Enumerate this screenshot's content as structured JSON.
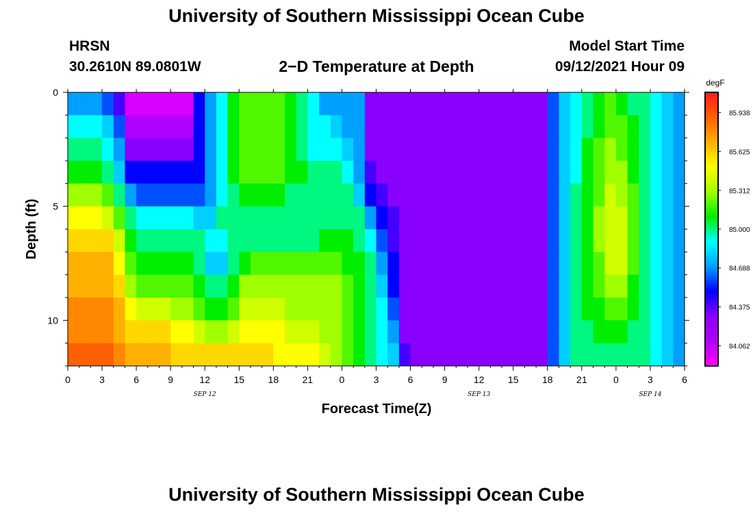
{
  "header": {
    "title_top": "University of Southern Mississippi Ocean Cube",
    "title_bottom": "University of Southern Mississippi Ocean Cube",
    "station": "HRSN",
    "coords": "30.2610N  89.0801W",
    "plot_title": "2−D Temperature at Depth",
    "model_label": "Model Start Time",
    "model_time": "09/12/2021 Hour 09"
  },
  "colors": {
    "colormap": [
      "#ff00ff",
      "#b000ff",
      "#8a00ff",
      "#0000ff",
      "#00a0ff",
      "#00ffff",
      "#00ee00",
      "#a0ff00",
      "#ffff00",
      "#ffb000",
      "#ff6000",
      "#ff1a1a"
    ]
  },
  "chart_data": {
    "type": "heatmap",
    "title": "2−D Temperature at Depth",
    "xlabel": "Forecast Time(Z)",
    "ylabel": "Depth (ft)",
    "x_tick_labels": [
      "0",
      "3",
      "6",
      "9",
      "12",
      "15",
      "18",
      "21",
      "0",
      "3",
      "6",
      "9",
      "12",
      "15",
      "18",
      "21",
      "0",
      "3",
      "6"
    ],
    "date_labels": [
      {
        "label": "SEP 12",
        "hour": 12
      },
      {
        "label": "SEP 13",
        "hour": 36
      },
      {
        "label": "SEP 14",
        "hour": 51
      }
    ],
    "y_tick_labels": [
      "0",
      "5",
      "10"
    ],
    "y_ticks": [
      0,
      5,
      10
    ],
    "xlim": [
      0,
      54
    ],
    "ylim": [
      0,
      12
    ],
    "hours": [
      0,
      1,
      2,
      3,
      4,
      5,
      6,
      7,
      8,
      9,
      10,
      11,
      12,
      13,
      14,
      15,
      16,
      17,
      18,
      19,
      20,
      21,
      22,
      23,
      24,
      25,
      26,
      27,
      28,
      29,
      30,
      31,
      32,
      33,
      34,
      35,
      36,
      37,
      38,
      39,
      40,
      41,
      42,
      43,
      44,
      45,
      46,
      47,
      48,
      49,
      50,
      51,
      52,
      53,
      54
    ],
    "depths": [
      0,
      1,
      2,
      3,
      4,
      5,
      6,
      7,
      8,
      9,
      10,
      11
    ],
    "colorbar": {
      "unit": "degF",
      "range": [
        83.9,
        86.1
      ],
      "tick_labels": [
        "85.938",
        "85.625",
        "85.312",
        "85.000",
        "84.688",
        "84.375",
        "84.062"
      ],
      "tick_values": [
        85.938,
        85.625,
        85.312,
        85.0,
        84.688,
        84.375,
        84.062
      ]
    },
    "values": [
      [
        84.7,
        84.7,
        84.7,
        84.6,
        84.4,
        84.0,
        84.0,
        84.0,
        84.0,
        84.0,
        84.0,
        84.5,
        84.7,
        84.9,
        85.1,
        85.2,
        85.2,
        85.2,
        85.2,
        85.1,
        85.0,
        84.9,
        84.7,
        84.7,
        84.7,
        84.7,
        84.3,
        84.3,
        84.3,
        84.3,
        84.3,
        84.3,
        84.3,
        84.3,
        84.3,
        84.3,
        84.3,
        84.3,
        84.3,
        84.3,
        84.3,
        84.3,
        84.6,
        84.8,
        84.9,
        85.0,
        85.1,
        85.2,
        85.1,
        85.0,
        85.0,
        84.9,
        84.8,
        84.7,
        84.7
      ],
      [
        84.9,
        84.9,
        84.9,
        84.8,
        84.6,
        84.1,
        84.1,
        84.1,
        84.1,
        84.1,
        84.1,
        84.5,
        84.7,
        84.9,
        85.1,
        85.2,
        85.2,
        85.2,
        85.2,
        85.1,
        85.0,
        84.9,
        84.9,
        84.8,
        84.7,
        84.7,
        84.3,
        84.3,
        84.3,
        84.3,
        84.3,
        84.3,
        84.3,
        84.3,
        84.3,
        84.3,
        84.3,
        84.3,
        84.3,
        84.3,
        84.3,
        84.3,
        84.6,
        84.8,
        84.9,
        85.0,
        85.1,
        85.2,
        85.2,
        85.1,
        85.0,
        84.9,
        84.8,
        84.7,
        84.7
      ],
      [
        85.0,
        85.0,
        85.0,
        84.9,
        84.7,
        84.3,
        84.3,
        84.3,
        84.3,
        84.3,
        84.3,
        84.5,
        84.7,
        84.9,
        85.1,
        85.2,
        85.2,
        85.2,
        85.2,
        85.1,
        85.0,
        84.9,
        84.9,
        84.9,
        84.8,
        84.7,
        84.3,
        84.3,
        84.3,
        84.3,
        84.3,
        84.3,
        84.3,
        84.3,
        84.3,
        84.3,
        84.3,
        84.3,
        84.3,
        84.3,
        84.3,
        84.3,
        84.6,
        84.8,
        84.9,
        85.1,
        85.2,
        85.3,
        85.2,
        85.1,
        85.0,
        84.9,
        84.8,
        84.7,
        84.7
      ],
      [
        85.1,
        85.1,
        85.1,
        85.0,
        84.8,
        84.5,
        84.5,
        84.5,
        84.5,
        84.5,
        84.5,
        84.5,
        84.7,
        84.9,
        85.1,
        85.2,
        85.2,
        85.2,
        85.2,
        85.1,
        85.1,
        85.0,
        85.0,
        85.0,
        84.9,
        84.7,
        84.4,
        84.3,
        84.3,
        84.3,
        84.3,
        84.3,
        84.3,
        84.3,
        84.3,
        84.3,
        84.3,
        84.3,
        84.3,
        84.3,
        84.3,
        84.3,
        84.6,
        84.8,
        84.9,
        85.1,
        85.2,
        85.3,
        85.3,
        85.1,
        85.0,
        84.9,
        84.8,
        84.7,
        84.7
      ],
      [
        85.3,
        85.3,
        85.3,
        85.2,
        85.0,
        84.7,
        84.6,
        84.6,
        84.6,
        84.6,
        84.6,
        84.6,
        84.7,
        84.9,
        85.0,
        85.1,
        85.1,
        85.1,
        85.1,
        85.0,
        85.0,
        85.0,
        85.0,
        85.0,
        85.0,
        84.8,
        84.5,
        84.4,
        84.3,
        84.3,
        84.3,
        84.3,
        84.3,
        84.3,
        84.3,
        84.3,
        84.3,
        84.3,
        84.3,
        84.3,
        84.3,
        84.3,
        84.6,
        84.8,
        85.0,
        85.1,
        85.2,
        85.4,
        85.3,
        85.2,
        85.0,
        84.9,
        84.8,
        84.7,
        84.7
      ],
      [
        85.5,
        85.5,
        85.5,
        85.4,
        85.2,
        85.0,
        84.9,
        84.9,
        84.9,
        84.9,
        84.9,
        84.8,
        84.8,
        85.0,
        85.0,
        85.0,
        85.0,
        85.0,
        85.0,
        85.0,
        85.0,
        85.0,
        85.0,
        85.0,
        85.0,
        85.0,
        84.7,
        84.5,
        84.4,
        84.3,
        84.3,
        84.3,
        84.3,
        84.3,
        84.3,
        84.3,
        84.3,
        84.3,
        84.3,
        84.3,
        84.3,
        84.3,
        84.6,
        84.8,
        85.0,
        85.1,
        85.3,
        85.4,
        85.4,
        85.2,
        85.0,
        84.9,
        84.8,
        84.7,
        84.7
      ],
      [
        85.6,
        85.6,
        85.6,
        85.6,
        85.4,
        85.1,
        85.0,
        85.0,
        85.0,
        85.0,
        85.0,
        85.0,
        84.9,
        84.9,
        85.0,
        85.0,
        85.0,
        85.0,
        85.0,
        85.0,
        85.0,
        85.0,
        85.1,
        85.1,
        85.1,
        85.0,
        84.9,
        84.6,
        84.4,
        84.3,
        84.3,
        84.3,
        84.3,
        84.3,
        84.3,
        84.3,
        84.3,
        84.3,
        84.3,
        84.3,
        84.3,
        84.3,
        84.6,
        84.8,
        85.0,
        85.1,
        85.3,
        85.4,
        85.4,
        85.2,
        85.0,
        84.9,
        84.8,
        84.7,
        84.7
      ],
      [
        85.7,
        85.7,
        85.7,
        85.7,
        85.5,
        85.2,
        85.1,
        85.1,
        85.1,
        85.1,
        85.1,
        85.0,
        84.8,
        84.8,
        85.0,
        85.1,
        85.2,
        85.2,
        85.2,
        85.2,
        85.2,
        85.2,
        85.2,
        85.2,
        85.1,
        85.1,
        85.0,
        84.7,
        84.5,
        84.3,
        84.3,
        84.3,
        84.3,
        84.3,
        84.3,
        84.3,
        84.3,
        84.3,
        84.3,
        84.3,
        84.3,
        84.3,
        84.6,
        84.8,
        85.0,
        85.1,
        85.2,
        85.4,
        85.4,
        85.2,
        85.0,
        84.9,
        84.8,
        84.7,
        84.7
      ],
      [
        85.7,
        85.7,
        85.7,
        85.7,
        85.6,
        85.3,
        85.2,
        85.2,
        85.2,
        85.2,
        85.2,
        85.1,
        85.0,
        85.0,
        85.1,
        85.3,
        85.3,
        85.3,
        85.3,
        85.3,
        85.3,
        85.3,
        85.3,
        85.3,
        85.2,
        85.1,
        85.0,
        84.8,
        84.5,
        84.3,
        84.3,
        84.3,
        84.3,
        84.3,
        84.3,
        84.3,
        84.3,
        84.3,
        84.3,
        84.3,
        84.3,
        84.3,
        84.6,
        84.8,
        85.0,
        85.1,
        85.2,
        85.3,
        85.3,
        85.1,
        85.0,
        84.9,
        84.8,
        84.7,
        84.7
      ],
      [
        85.8,
        85.8,
        85.8,
        85.8,
        85.7,
        85.5,
        85.4,
        85.4,
        85.4,
        85.3,
        85.3,
        85.2,
        85.1,
        85.1,
        85.2,
        85.4,
        85.4,
        85.4,
        85.4,
        85.3,
        85.3,
        85.3,
        85.3,
        85.3,
        85.2,
        85.1,
        85.0,
        84.9,
        84.6,
        84.3,
        84.3,
        84.3,
        84.3,
        84.3,
        84.3,
        84.3,
        84.3,
        84.3,
        84.3,
        84.3,
        84.3,
        84.3,
        84.6,
        84.8,
        85.0,
        85.1,
        85.1,
        85.2,
        85.2,
        85.1,
        85.0,
        84.9,
        84.8,
        84.7,
        84.7
      ],
      [
        85.8,
        85.8,
        85.8,
        85.8,
        85.7,
        85.6,
        85.6,
        85.6,
        85.6,
        85.5,
        85.5,
        85.4,
        85.3,
        85.3,
        85.4,
        85.5,
        85.5,
        85.5,
        85.5,
        85.4,
        85.4,
        85.4,
        85.3,
        85.3,
        85.2,
        85.1,
        85.0,
        84.9,
        84.7,
        84.3,
        84.3,
        84.3,
        84.3,
        84.3,
        84.3,
        84.3,
        84.3,
        84.3,
        84.3,
        84.3,
        84.3,
        84.3,
        84.6,
        84.8,
        85.0,
        85.0,
        85.1,
        85.1,
        85.1,
        85.0,
        85.0,
        84.9,
        84.8,
        84.7,
        84.7
      ],
      [
        85.9,
        85.9,
        85.9,
        85.9,
        85.8,
        85.7,
        85.7,
        85.7,
        85.7,
        85.6,
        85.6,
        85.6,
        85.6,
        85.6,
        85.6,
        85.6,
        85.6,
        85.6,
        85.5,
        85.5,
        85.5,
        85.5,
        85.4,
        85.3,
        85.2,
        85.1,
        85.0,
        84.9,
        84.8,
        84.4,
        84.3,
        84.3,
        84.3,
        84.3,
        84.3,
        84.3,
        84.3,
        84.3,
        84.3,
        84.3,
        84.3,
        84.3,
        84.6,
        84.8,
        85.0,
        85.0,
        85.0,
        85.0,
        85.0,
        85.0,
        85.0,
        84.9,
        84.8,
        84.7,
        84.7
      ]
    ]
  }
}
